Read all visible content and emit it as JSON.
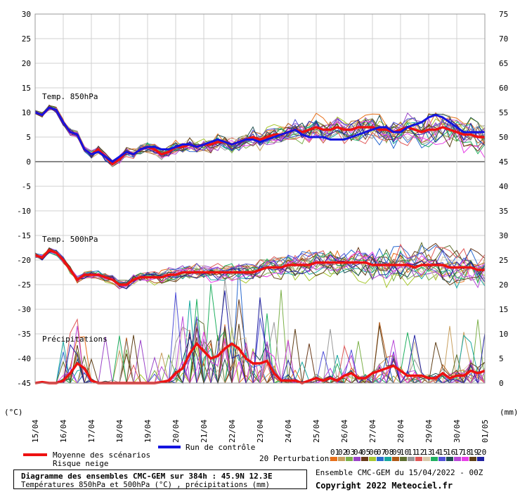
{
  "chart_data": {
    "type": "line",
    "title": "Diagramme des ensembles CMC-GEM sur 384h : 45.9N 12.3E",
    "subtitle": "Températures 850hPa et 500hPa (°C) , précipitations (mm)",
    "left_axis": {
      "unit_label": "(°C)",
      "ticks": [
        30,
        25,
        20,
        15,
        10,
        5,
        0,
        -5,
        -10,
        -15,
        -20,
        -25,
        -30,
        -35,
        -40,
        -45
      ],
      "range": [
        -45,
        30
      ]
    },
    "right_axis": {
      "unit_label": "(mm)",
      "ticks": [
        75,
        70,
        65,
        60,
        55,
        50,
        45,
        40,
        35,
        30,
        25,
        20,
        15,
        10,
        5,
        0
      ],
      "range": [
        0,
        75
      ]
    },
    "x_labels": [
      "15/04",
      "16/04",
      "17/04",
      "18/04",
      "19/04",
      "20/04",
      "21/04",
      "22/04",
      "23/04",
      "24/04",
      "25/04",
      "26/04",
      "27/04",
      "28/04",
      "29/04",
      "30/04",
      "01/05"
    ],
    "section_labels": {
      "t850": "Temp. 850hPa",
      "t500": "Temp. 500hPa",
      "precip": "Précipitations"
    },
    "legend": {
      "mean": "Moyenne des scénarios",
      "snow": "Risque neige",
      "control": "Run de contrôle",
      "perturbations": "20 Perturbations",
      "member_labels": [
        "01",
        "02",
        "03",
        "04",
        "05",
        "06",
        "07",
        "08",
        "09",
        "10",
        "11",
        "12",
        "13",
        "14",
        "15",
        "16",
        "17",
        "18",
        "19",
        "20"
      ],
      "member_colors": [
        "#e8701a",
        "#c8a060",
        "#7cb04a",
        "#9a44c8",
        "#6a3a1a",
        "#a8c830",
        "#2a6ad0",
        "#18a8a0",
        "#b05a18",
        "#607030",
        "#9a9a9a",
        "#e05858",
        "#d8c8a8",
        "#20b060",
        "#5050d8",
        "#205050",
        "#b848d8",
        "#e840e8",
        "#604018",
        "#2020a0"
      ],
      "mean_color": "#ee1111",
      "control_color": "#1414e0"
    },
    "x": [
      0,
      6,
      12,
      18,
      24,
      30,
      36,
      42,
      48,
      54,
      60,
      66,
      72,
      78,
      84,
      90,
      96,
      102,
      108,
      114,
      120,
      126,
      132,
      138,
      144,
      150,
      156,
      162,
      168,
      174,
      180,
      186,
      192,
      198,
      204,
      210,
      216,
      222,
      228,
      234,
      240,
      246,
      252,
      258,
      264,
      270,
      276,
      282,
      288,
      294,
      300,
      306,
      312,
      318,
      324,
      330,
      336,
      342,
      348,
      354,
      360,
      366,
      372,
      378,
      384
    ],
    "x_unit": "hours from 15/04/2022 00Z",
    "series": [
      {
        "name": "Moyenne des scénarios",
        "group": "t850",
        "values": [
          10,
          9.5,
          11,
          10.5,
          8,
          6,
          5.5,
          2.5,
          1.5,
          2.5,
          1,
          -0.5,
          0.5,
          2,
          1.5,
          2.5,
          3,
          2.5,
          1.5,
          2,
          3,
          3,
          3.5,
          3,
          3.5,
          3.5,
          4,
          4,
          3.5,
          4,
          4.5,
          5,
          4.5,
          5,
          5.5,
          5.5,
          6,
          6.5,
          6,
          6.5,
          7,
          6.5,
          6.5,
          7,
          6.5,
          6.5,
          7,
          7,
          7,
          6.5,
          6.5,
          6,
          6.5,
          7,
          6.5,
          6,
          6.5,
          6.5,
          7,
          6.5,
          6,
          5.5,
          5.5,
          5,
          5
        ]
      },
      {
        "name": "Run de contrôle",
        "group": "t850",
        "values": [
          10,
          9.5,
          11,
          10.5,
          8,
          6,
          5.5,
          2.5,
          1.5,
          2,
          1,
          0,
          1,
          2,
          1.5,
          2.5,
          3,
          3,
          2.5,
          2.5,
          3,
          3.5,
          3.5,
          3,
          3.5,
          4,
          4.5,
          4,
          3.5,
          4,
          4.5,
          4.5,
          4,
          4.5,
          5,
          5.5,
          6,
          6.5,
          5.5,
          5,
          5,
          5,
          4.5,
          4.5,
          4.5,
          5,
          5.5,
          6,
          6.5,
          7,
          7,
          6,
          6,
          7,
          7.5,
          8,
          9,
          9.5,
          9,
          8,
          7,
          6,
          6,
          6,
          6
        ]
      },
      {
        "name": "Moyenne des scénarios",
        "group": "t500",
        "values": [
          -19,
          -19.5,
          -18,
          -18.5,
          -20,
          -22,
          -24,
          -23,
          -23,
          -23,
          -23.5,
          -24,
          -25,
          -25,
          -24,
          -23.5,
          -23.5,
          -23.5,
          -23.5,
          -23,
          -23,
          -22.5,
          -22.5,
          -22.5,
          -22.5,
          -22.5,
          -22.5,
          -22.5,
          -22.5,
          -22.5,
          -22.5,
          -22.5,
          -22,
          -21.5,
          -21.5,
          -21.5,
          -21,
          -21,
          -21,
          -21,
          -20.5,
          -20.5,
          -20.5,
          -20.5,
          -20.5,
          -20.5,
          -20.5,
          -20.5,
          -21,
          -21,
          -21,
          -21,
          -21,
          -21,
          -21.5,
          -21,
          -21,
          -21,
          -21,
          -21.5,
          -21.5,
          -21.5,
          -21.5,
          -22,
          -22
        ]
      },
      {
        "name": "Moyenne des scénarios",
        "group": "precip",
        "values": [
          0,
          0.2,
          0,
          0,
          0.5,
          2,
          4,
          3,
          0.5,
          0,
          0,
          0,
          0,
          0,
          0,
          0,
          0,
          0,
          0.2,
          0.5,
          2,
          3,
          6,
          8,
          6.5,
          5,
          5.5,
          7,
          8,
          7,
          5,
          4,
          4,
          4.5,
          2,
          0.5,
          0.5,
          0.5,
          0,
          0.5,
          1,
          0.5,
          1,
          0.5,
          1.5,
          2,
          1,
          1,
          2,
          2.5,
          3,
          3.5,
          2.5,
          1.5,
          1.5,
          1.5,
          1,
          1,
          2,
          1,
          1.5,
          1.5,
          2.5,
          2,
          2.5
        ]
      }
    ]
  }
}
